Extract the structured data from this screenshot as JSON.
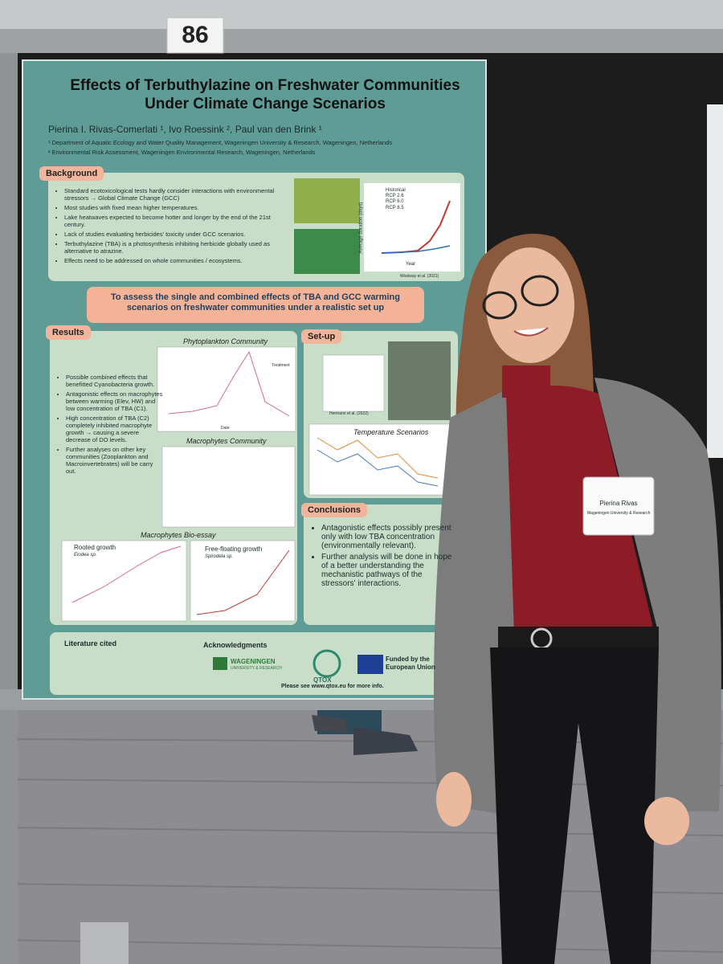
{
  "sign": "86",
  "poster": {
    "title": "Effects of Terbuthylazine on Freshwater Communities Under Climate Change Scenarios",
    "authors": "Pierina I. Rivas-Comerlati ¹, Ivo Roessink ², Paul van den Brink ¹",
    "affiliations": [
      "¹ Department of Aquatic Ecology and Water Quality Management, Wageningen University & Research, Wageningen, Netherlands",
      "² Environmental Risk Assessment, Wageningen Environmental Research, Wageningen, Netherlands"
    ],
    "background": {
      "heading": "Background",
      "bullets": [
        "Standard ecotoxicological tests hardly consider interactions with environmental stressors → Global Climate Change (GCC)",
        "Most studies with fixed mean higher temperatures.",
        "Lake heatwaves expected to become hotter and longer by the end of the 21st century.",
        "Lack of studies evaluating herbicides' toxicity under GCC scenarios.",
        "Terbuthylazine (TBA) is a photosynthesis inhibiting herbicide globally used as alternative to atrazine.",
        "Effects need to be addressed on whole communities / ecosystems."
      ],
      "figure": {
        "legend": [
          "Historical",
          "RCP 2.6",
          "RCP 6.0",
          "RCP 8.5"
        ],
        "x_label": "Year",
        "y_label": "Average duration (days)",
        "source": "Woolway et al. (2021)"
      }
    },
    "aim": "To assess the single and combined effects of TBA and GCC warming scenarios on freshwater communities under a realistic set up",
    "results": {
      "heading": "Results",
      "bullets": [
        "Possible combined effects that benefitted Cyanobacteria growth.",
        "Antagonistic effects on macrophytes between warming (Elev, HW) and low concentration of TBA (C1).",
        "High concentration of TBA (C2) completely inhibited macrophyte growth → causing a severe decrease of DO levels.",
        "Further analyses on other key communities (Zooplankton and Macroinvertebrates) will be carry out."
      ],
      "phyto_title": "Phytoplankton Community",
      "macro_title": "Macrophytes Community",
      "bioassay_title": "Macrophytes Bio-essay",
      "rooted": "Rooted growth",
      "rooted_species": "Elodea sp.",
      "floating": "Free-floating growth",
      "floating_species": "Spirodela sp.",
      "legend_title": "Treatment",
      "x_label": "Date"
    },
    "setup": {
      "heading": "Set-up",
      "temp_title": "Temperature Scenarios",
      "credit": "Hermann et al. (2022)"
    },
    "conclusions": {
      "heading": "Conclusions",
      "bullets": [
        "Antagonistic effects possibly present only with low TBA concentration (environmentally relevant).",
        "Further analysis will be done in hope of a better understanding the mechanistic pathways of the stressors' interactions."
      ]
    },
    "footer": {
      "literature": "Literature cited",
      "acknowledgments": "Acknowledgments",
      "wur": "WAGENINGEN",
      "wur_sub": "UNIVERSITY & RESEARCH",
      "qtox": "QTOX",
      "eu": "Funded by the European Union",
      "more_info": "Please see www.qtox.eu for more info."
    }
  },
  "badge": {
    "name": "Pierina Rivas",
    "affiliation": "Wageningen University & Research"
  }
}
